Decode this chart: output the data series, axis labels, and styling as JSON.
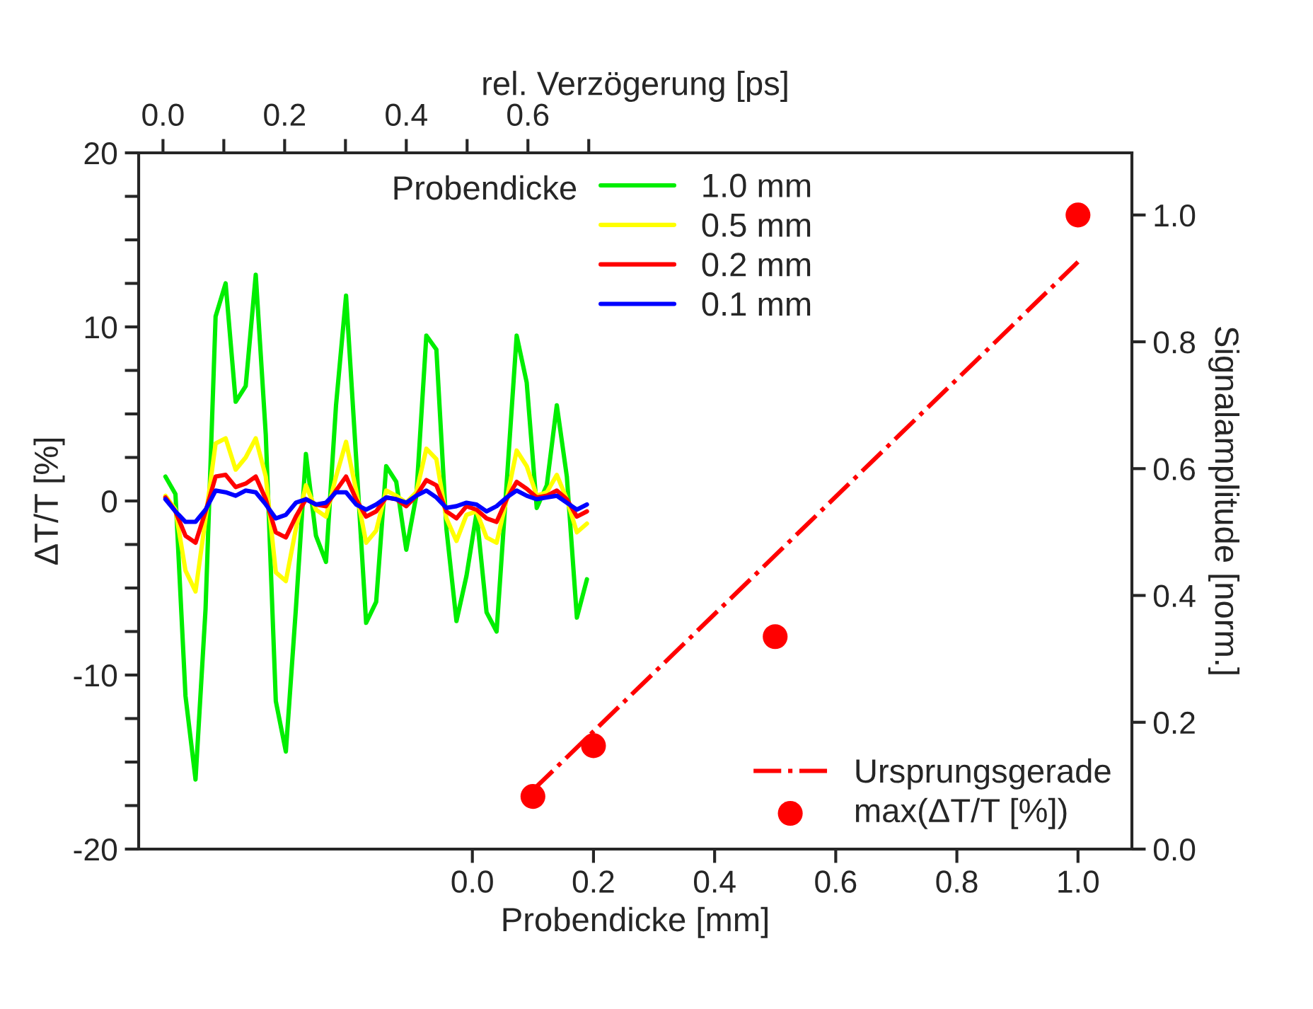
{
  "chart_data": [
    {
      "type": "line",
      "xlabel": "rel. Verzögerung [ps]",
      "ylabel": "ΔT/T [%]",
      "xlim": [
        -0.04,
        1.593
      ],
      "xticks": [
        {
          "value": 0,
          "label": "0.0"
        },
        {
          "value": 0.1,
          "label": null
        },
        0.2,
        {
          "value": 0.3,
          "label": null
        },
        0.4,
        {
          "value": 0.5,
          "label": null
        },
        0.6,
        {
          "value": 0.7,
          "label": null
        }
      ],
      "ylim": [
        -20,
        20
      ],
      "yticks": [
        -20,
        {
          "value": -17.5,
          "label": null
        },
        {
          "value": -15,
          "label": null
        },
        {
          "value": -12.5,
          "label": null
        },
        -10,
        {
          "value": -7.5,
          "label": null
        },
        {
          "value": -5,
          "label": null
        },
        {
          "value": -2.5,
          "label": null
        },
        0,
        {
          "value": 2.5,
          "label": null
        },
        {
          "value": 5,
          "label": null
        },
        {
          "value": 7.5,
          "label": null
        },
        10,
        {
          "value": 12.5,
          "label": null
        },
        {
          "value": 15,
          "label": null
        },
        {
          "value": 17.5,
          "label": null
        },
        20
      ],
      "x": [
        0.004,
        0.0205,
        0.037,
        0.0535,
        0.07,
        0.0865,
        0.103,
        0.1195,
        0.136,
        0.1525,
        0.169,
        0.1855,
        0.202,
        0.2185,
        0.235,
        0.2515,
        0.268,
        0.2845,
        0.301,
        0.3175,
        0.334,
        0.3505,
        0.367,
        0.3835,
        0.4,
        0.4165,
        0.433,
        0.4495,
        0.466,
        0.4825,
        0.499,
        0.5155,
        0.532,
        0.5485,
        0.565,
        0.5815,
        0.598,
        0.6145,
        0.631,
        0.6475,
        0.664,
        0.6805,
        0.697
      ],
      "legend": "top",
      "legend_title": "Probendicke",
      "grid": false,
      "series": [
        {
          "name": "1.0 mm",
          "color": "#00ee00",
          "values": [
            1.4,
            0.4,
            -11.2,
            -16.0,
            -6.2,
            10.6,
            12.5,
            5.7,
            6.6,
            13.0,
            3.8,
            -11.5,
            -14.4,
            -6.2,
            2.7,
            -2.0,
            -3.5,
            5.5,
            11.8,
            2.5,
            -7.0,
            -5.8,
            2.0,
            1.1,
            -2.8,
            0.3,
            9.5,
            8.7,
            -1.6,
            -6.9,
            -4.3,
            -0.7,
            -6.4,
            -7.5,
            1.0,
            9.5,
            6.8,
            -0.4,
            0.9,
            5.5,
            1.4,
            -6.7,
            -4.5
          ]
        },
        {
          "name": "0.5 mm",
          "color": "#ffff00",
          "values": [
            0.3,
            -0.5,
            -4.0,
            -5.2,
            -1.0,
            3.3,
            3.6,
            1.8,
            2.5,
            3.6,
            1.4,
            -4.1,
            -4.6,
            -1.6,
            0.9,
            -0.5,
            -0.9,
            1.4,
            3.4,
            0.6,
            -2.4,
            -1.7,
            0.6,
            0.3,
            -0.1,
            0.5,
            3.0,
            2.4,
            -1.0,
            -2.3,
            -0.8,
            -0.6,
            -2.1,
            -2.4,
            0.1,
            2.9,
            2.0,
            0.3,
            0.5,
            1.5,
            0.1,
            -1.8,
            -1.3
          ]
        },
        {
          "name": "0.2 mm",
          "color": "#ff0000",
          "values": [
            0.2,
            -0.6,
            -2.0,
            -2.4,
            -0.6,
            1.4,
            1.5,
            0.8,
            1.0,
            1.4,
            0.1,
            -1.8,
            -2.1,
            -0.9,
            0.1,
            -0.2,
            -0.3,
            0.6,
            1.4,
            0.1,
            -0.9,
            -0.6,
            0.2,
            0.1,
            -0.3,
            0.3,
            1.2,
            0.9,
            -0.6,
            -1.0,
            -0.3,
            -0.5,
            -1.0,
            -1.2,
            0.1,
            1.1,
            0.7,
            0.2,
            0.3,
            0.6,
            0.1,
            -0.9,
            -0.6
          ]
        },
        {
          "name": "0.1 mm",
          "color": "#0000ff",
          "values": [
            0.1,
            -0.6,
            -1.2,
            -1.2,
            -0.5,
            0.6,
            0.5,
            0.3,
            0.6,
            0.5,
            -0.2,
            -1.0,
            -0.8,
            -0.1,
            0.1,
            -0.2,
            -0.1,
            0.5,
            0.5,
            -0.2,
            -0.5,
            -0.2,
            0.2,
            0.1,
            -0.1,
            0.3,
            0.6,
            0.2,
            -0.4,
            -0.3,
            -0.1,
            -0.2,
            -0.6,
            -0.3,
            0.2,
            0.6,
            0.3,
            0.1,
            0.2,
            0.3,
            -0.1,
            -0.5,
            -0.2
          ]
        }
      ]
    },
    {
      "type": "scatter",
      "xlabel": "Probendicke [mm]",
      "y2label": "Signalamplitude [norm.]",
      "xlim": [
        -0.551,
        1.089
      ],
      "xticks": [
        {
          "value": 0,
          "label": "0.0"
        },
        0.2,
        0.4,
        0.6,
        0.8,
        {
          "value": 1,
          "label": "1.0"
        }
      ],
      "y2lim": [
        0.0,
        1.098
      ],
      "y2ticks": [
        {
          "value": 0,
          "label": "0.0"
        },
        0.2,
        0.4,
        0.6,
        0.8,
        {
          "value": 1,
          "label": "1.0"
        }
      ],
      "legend": "bottom right",
      "grid": false,
      "series": [
        {
          "type": "line",
          "name": "Ursprungsgerade",
          "color": "#ff0000",
          "line_style": "dashdot",
          "marker": "none",
          "axis": "y2",
          "x": [
            0.1,
            1.0
          ],
          "values": [
            0.093,
            0.926
          ]
        },
        {
          "type": "scatter",
          "name": "max(ΔT/T [%])",
          "color": "#ff0000",
          "marker": "circle",
          "axis": "y2",
          "x": [
            0.1,
            0.2,
            0.5,
            1.0
          ],
          "values": [
            0.083,
            0.163,
            0.335,
            1.0
          ]
        }
      ]
    }
  ]
}
